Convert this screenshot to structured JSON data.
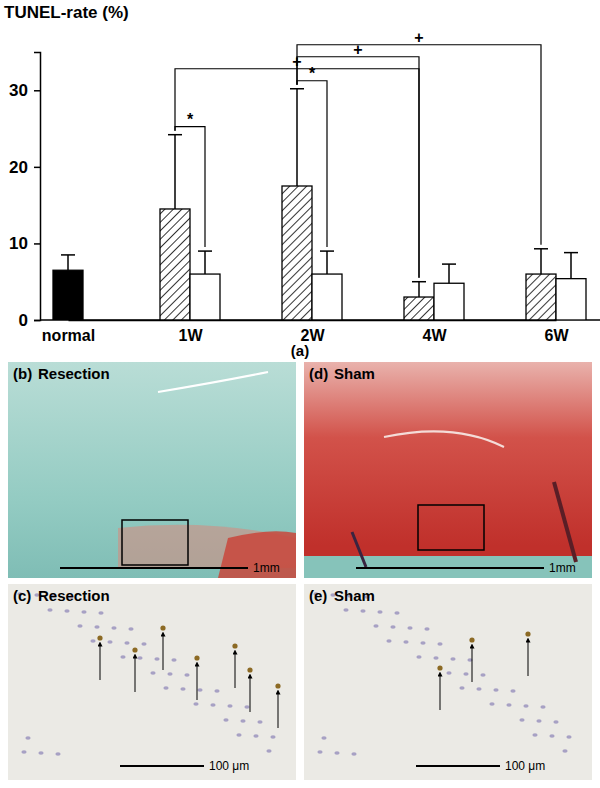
{
  "chart_data": {
    "type": "bar",
    "y_label": "TUNEL-rate (%)",
    "x_label": "(a)",
    "categories": [
      "normal",
      "1W",
      "2W",
      "4W",
      "6W"
    ],
    "series": [
      {
        "color": "#000000",
        "values": [
          6.5,
          null,
          null,
          null,
          null
        ],
        "errors": [
          2.0,
          null,
          null,
          null,
          null
        ]
      },
      {
        "color": "#000000",
        "marker": "hatch",
        "values": [
          null,
          14.5,
          17.5,
          3.0,
          6.0
        ],
        "errors": [
          null,
          9.7,
          12.7,
          2.0,
          3.3
        ]
      },
      {
        "color": "#ffffff",
        "values": [
          null,
          6.0,
          6.0,
          4.8,
          5.4
        ],
        "errors": [
          null,
          3.0,
          3.0,
          2.5,
          3.4
        ]
      }
    ],
    "ylim": [
      0,
      35
    ],
    "yticks": [
      0,
      10,
      20,
      30
    ],
    "annotations": [
      {
        "text": "*",
        "between": [
          [
            "1W",
            1
          ],
          [
            "1W",
            2
          ]
        ]
      },
      {
        "text": "*",
        "between": [
          [
            "2W",
            1
          ],
          [
            "2W",
            2
          ]
        ]
      },
      {
        "text": "+",
        "between": [
          [
            "1W",
            1
          ],
          [
            "4W",
            1
          ]
        ]
      },
      {
        "text": "+",
        "between": [
          [
            "2W",
            1
          ],
          [
            "4W",
            1
          ]
        ]
      },
      {
        "text": "+",
        "between": [
          [
            "2W",
            1
          ],
          [
            "6W",
            1
          ]
        ]
      }
    ]
  },
  "panels": [
    {
      "label": "(b)",
      "title": "Resection",
      "scale_bar": "1mm"
    },
    {
      "label": "(c)",
      "title": "Resection",
      "scale_bar": "100 μm"
    },
    {
      "label": "(d)",
      "title": "Sham",
      "scale_bar": "1mm"
    },
    {
      "label": "(e)",
      "title": "Sham",
      "scale_bar": "100 μm"
    }
  ]
}
